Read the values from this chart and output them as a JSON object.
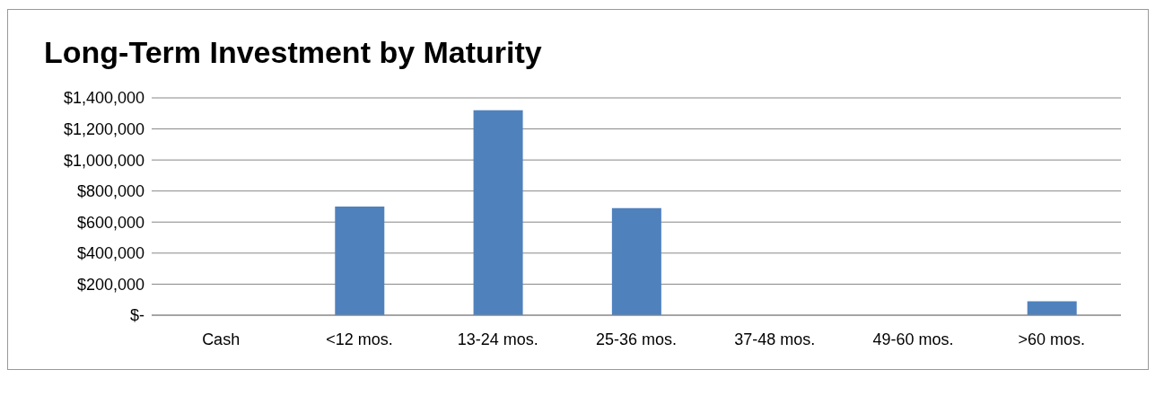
{
  "chart_data": {
    "type": "bar",
    "title": "Long-Term Investment by Maturity",
    "categories": [
      "Cash",
      "<12 mos.",
      "13-24 mos.",
      "25-36 mos.",
      "37-48 mos.",
      "49-60 mos.",
      ">60 mos."
    ],
    "values": [
      0,
      700000,
      1320000,
      690000,
      0,
      0,
      90000
    ],
    "color": "#4f81bd",
    "ylim": [
      0,
      1400000
    ],
    "yticks": [
      {
        "value": 0,
        "label": "$-"
      },
      {
        "value": 200000,
        "label": "$200,000"
      },
      {
        "value": 400000,
        "label": "$400,000"
      },
      {
        "value": 600000,
        "label": "$600,000"
      },
      {
        "value": 800000,
        "label": "$800,000"
      },
      {
        "value": 1000000,
        "label": "$1,000,000"
      },
      {
        "value": 1200000,
        "label": "$1,200,000"
      },
      {
        "value": 1400000,
        "label": "$1,400,000"
      }
    ],
    "grid": "y",
    "legend": false
  }
}
